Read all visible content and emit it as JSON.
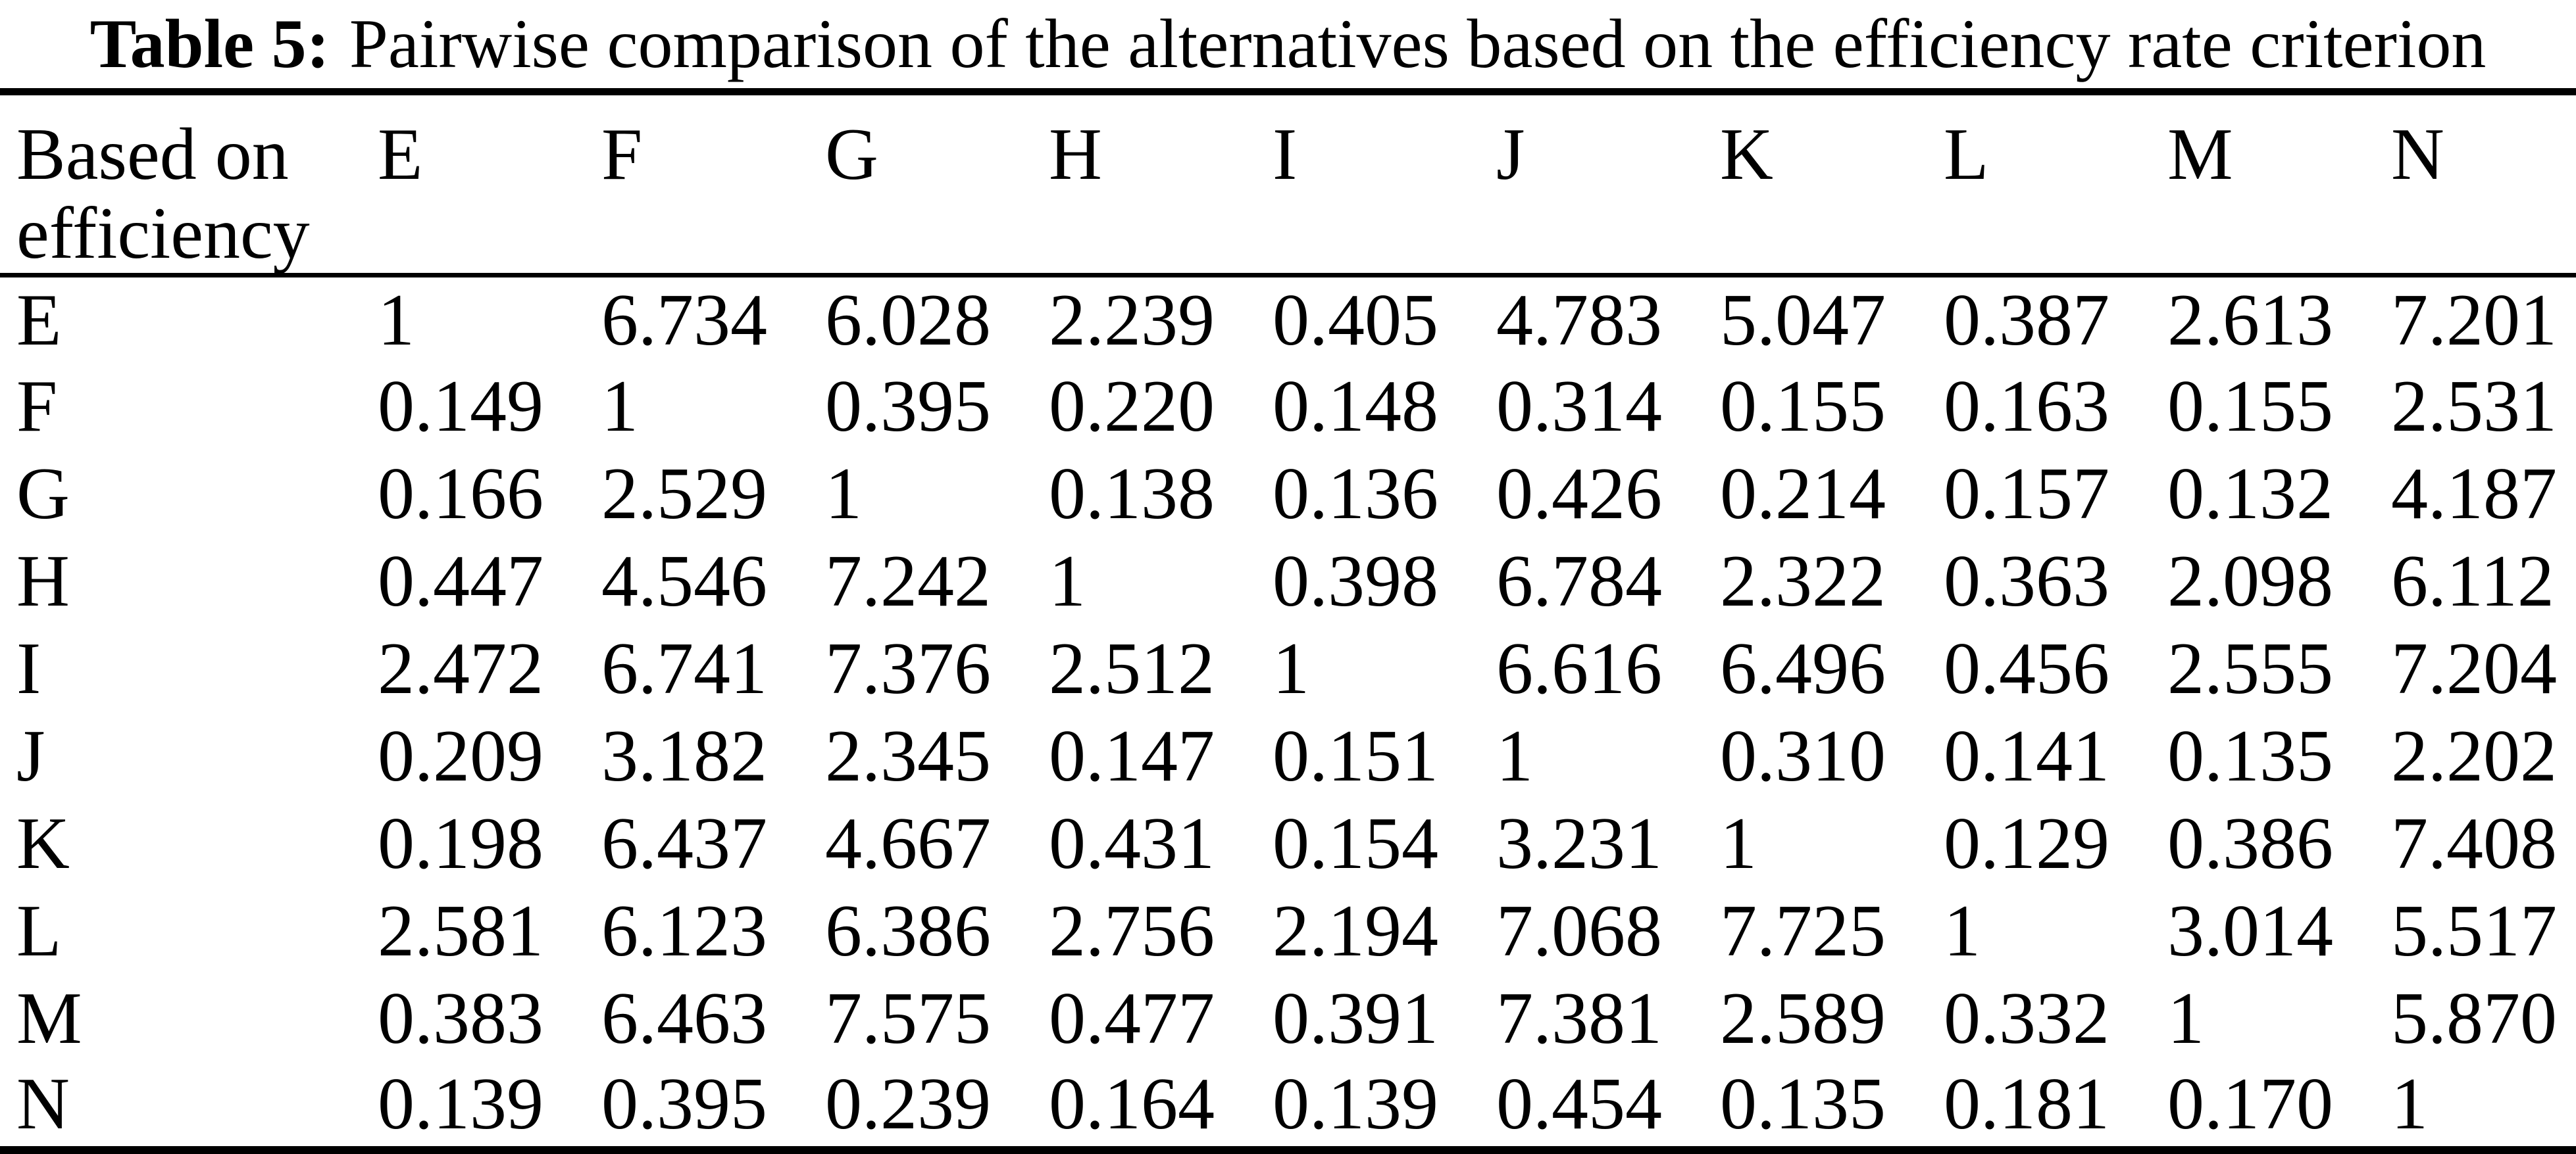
{
  "title": {
    "label": "Table 5:",
    "text": "Pairwise comparison of the alternatives based on the efficiency rate criterion"
  },
  "table": {
    "corner_header": "Based on efficiency",
    "columns": [
      "E",
      "F",
      "G",
      "H",
      "I",
      "J",
      "K",
      "L",
      "M",
      "N"
    ],
    "rows": [
      {
        "label": "E",
        "values": [
          "1",
          "6.734",
          "6.028",
          "2.239",
          "0.405",
          "4.783",
          "5.047",
          "0.387",
          "2.613",
          "7.201"
        ]
      },
      {
        "label": "F",
        "values": [
          "0.149",
          "1",
          "0.395",
          "0.220",
          "0.148",
          "0.314",
          "0.155",
          "0.163",
          "0.155",
          "2.531"
        ]
      },
      {
        "label": "G",
        "values": [
          "0.166",
          "2.529",
          "1",
          "0.138",
          "0.136",
          "0.426",
          "0.214",
          "0.157",
          "0.132",
          "4.187"
        ]
      },
      {
        "label": "H",
        "values": [
          "0.447",
          "4.546",
          "7.242",
          "1",
          "0.398",
          "6.784",
          "2.322",
          "0.363",
          "2.098",
          "6.112"
        ]
      },
      {
        "label": "I",
        "values": [
          "2.472",
          "6.741",
          "7.376",
          "2.512",
          "1",
          "6.616",
          "6.496",
          "0.456",
          "2.555",
          "7.204"
        ]
      },
      {
        "label": "J",
        "values": [
          "0.209",
          "3.182",
          "2.345",
          "0.147",
          "0.151",
          "1",
          "0.310",
          "0.141",
          "0.135",
          "2.202"
        ]
      },
      {
        "label": "K",
        "values": [
          "0.198",
          "6.437",
          "4.667",
          "0.431",
          "0.154",
          "3.231",
          "1",
          "0.129",
          "0.386",
          "7.408"
        ]
      },
      {
        "label": "L",
        "values": [
          "2.581",
          "6.123",
          "6.386",
          "2.756",
          "2.194",
          "7.068",
          "7.725",
          "1",
          "3.014",
          "5.517"
        ]
      },
      {
        "label": "M",
        "values": [
          "0.383",
          "6.463",
          "7.575",
          "0.477",
          "0.391",
          "7.381",
          "2.589",
          "0.332",
          "1",
          "5.870"
        ]
      },
      {
        "label": "N",
        "values": [
          "0.139",
          "0.395",
          "0.239",
          "0.164",
          "0.139",
          "0.454",
          "0.135",
          "0.181",
          "0.170",
          "1"
        ]
      }
    ]
  }
}
